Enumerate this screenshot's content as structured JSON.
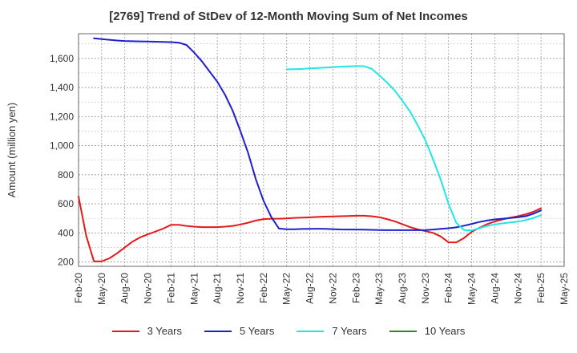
{
  "chart_data": {
    "type": "line",
    "title": "[2769]  Trend of StDev of 12-Month Moving Sum of Net Incomes",
    "xlabel": "",
    "ylabel": "Amount (million yen)",
    "ylim": [
      170,
      1770
    ],
    "yticks": [
      200,
      400,
      600,
      800,
      1000,
      1200,
      1400,
      1600
    ],
    "ytick_labels": [
      "200",
      "400",
      "600",
      "800",
      "1,000",
      "1,200",
      "1,400",
      "1,600"
    ],
    "xlim": [
      "2020-02",
      "2025-05"
    ],
    "xtick_labels": [
      "Feb-20",
      "May-20",
      "Aug-20",
      "Nov-20",
      "Feb-21",
      "May-21",
      "Aug-21",
      "Nov-21",
      "Feb-22",
      "May-22",
      "Aug-22",
      "Nov-22",
      "Feb-23",
      "May-23",
      "Aug-23",
      "Nov-23",
      "Feb-24",
      "May-24",
      "Aug-24",
      "Nov-24",
      "Feb-25",
      "May-25"
    ],
    "grid": true,
    "legend_position": "bottom",
    "series": [
      {
        "name": "3 Years",
        "color": "#e31a1c",
        "x": [
          "2020-02",
          "2020-03",
          "2020-04",
          "2020-05",
          "2020-06",
          "2020-07",
          "2020-08",
          "2020-09",
          "2020-10",
          "2020-11",
          "2020-12",
          "2021-01",
          "2021-02",
          "2021-03",
          "2021-04",
          "2021-05",
          "2021-06",
          "2021-07",
          "2021-08",
          "2021-09",
          "2021-10",
          "2021-11",
          "2021-12",
          "2022-01",
          "2022-02",
          "2022-03",
          "2022-04",
          "2022-05",
          "2022-06",
          "2022-07",
          "2022-08",
          "2022-09",
          "2022-10",
          "2022-11",
          "2022-12",
          "2023-01",
          "2023-02",
          "2023-03",
          "2023-04",
          "2023-05",
          "2023-06",
          "2023-07",
          "2023-08",
          "2023-09",
          "2023-10",
          "2023-11",
          "2023-12",
          "2024-01",
          "2024-02",
          "2024-03",
          "2024-04",
          "2024-05",
          "2024-06",
          "2024-07",
          "2024-08",
          "2024-09",
          "2024-10",
          "2024-11",
          "2024-12",
          "2025-01",
          "2025-02"
        ],
        "values": [
          650,
          380,
          205,
          205,
          225,
          260,
          300,
          340,
          370,
          390,
          410,
          430,
          455,
          455,
          448,
          443,
          440,
          440,
          440,
          443,
          448,
          458,
          470,
          485,
          495,
          498,
          498,
          500,
          503,
          505,
          507,
          510,
          512,
          513,
          515,
          516,
          518,
          518,
          515,
          508,
          495,
          480,
          460,
          440,
          425,
          412,
          400,
          375,
          335,
          335,
          365,
          408,
          435,
          460,
          478,
          493,
          505,
          515,
          528,
          545,
          570
        ]
      },
      {
        "name": "5 Years",
        "color": "#1f1fcc",
        "x": [
          "2020-04",
          "2020-05",
          "2020-06",
          "2020-07",
          "2020-08",
          "2020-09",
          "2020-10",
          "2020-11",
          "2020-12",
          "2021-01",
          "2021-02",
          "2021-03",
          "2021-04",
          "2021-05",
          "2021-06",
          "2021-07",
          "2021-08",
          "2021-09",
          "2021-10",
          "2021-11",
          "2021-12",
          "2022-01",
          "2022-02",
          "2022-03",
          "2022-04",
          "2022-05",
          "2022-06",
          "2022-07",
          "2022-08",
          "2022-09",
          "2022-10",
          "2022-11",
          "2022-12",
          "2023-01",
          "2023-02",
          "2023-03",
          "2023-04",
          "2023-05",
          "2023-06",
          "2023-07",
          "2023-08",
          "2023-09",
          "2023-10",
          "2023-11",
          "2023-12",
          "2024-01",
          "2024-02",
          "2024-03",
          "2024-04",
          "2024-05",
          "2024-06",
          "2024-07",
          "2024-08",
          "2024-09",
          "2024-10",
          "2024-11",
          "2024-12",
          "2025-01",
          "2025-02"
        ],
        "values": [
          1738,
          1733,
          1728,
          1723,
          1720,
          1718,
          1717,
          1716,
          1715,
          1713,
          1712,
          1708,
          1693,
          1640,
          1580,
          1510,
          1440,
          1350,
          1240,
          1100,
          950,
          770,
          620,
          510,
          430,
          425,
          425,
          427,
          428,
          429,
          428,
          426,
          424,
          423,
          423,
          422,
          421,
          420,
          419,
          419,
          419,
          419,
          419,
          420,
          423,
          428,
          432,
          438,
          450,
          462,
          475,
          485,
          493,
          498,
          502,
          508,
          515,
          532,
          555
        ]
      },
      {
        "name": "7 Years",
        "color": "#22e6e6",
        "x": [
          "2022-05",
          "2022-06",
          "2022-07",
          "2022-08",
          "2022-09",
          "2022-10",
          "2022-11",
          "2022-12",
          "2023-01",
          "2023-02",
          "2023-03",
          "2023-04",
          "2023-05",
          "2023-06",
          "2023-07",
          "2023-08",
          "2023-09",
          "2023-10",
          "2023-11",
          "2023-12",
          "2024-01",
          "2024-02",
          "2024-03",
          "2024-04",
          "2024-05",
          "2024-06",
          "2024-07",
          "2024-08",
          "2024-09",
          "2024-10",
          "2024-11",
          "2024-12",
          "2025-01",
          "2025-02"
        ],
        "values": [
          1525,
          1526,
          1528,
          1531,
          1534,
          1537,
          1540,
          1543,
          1545,
          1547,
          1547,
          1530,
          1485,
          1435,
          1380,
          1310,
          1235,
          1140,
          1035,
          905,
          765,
          600,
          470,
          420,
          418,
          432,
          448,
          458,
          466,
          472,
          478,
          488,
          502,
          522
        ]
      },
      {
        "name": "10 Years",
        "color": "#2a8a2a",
        "x": [],
        "values": []
      }
    ]
  }
}
